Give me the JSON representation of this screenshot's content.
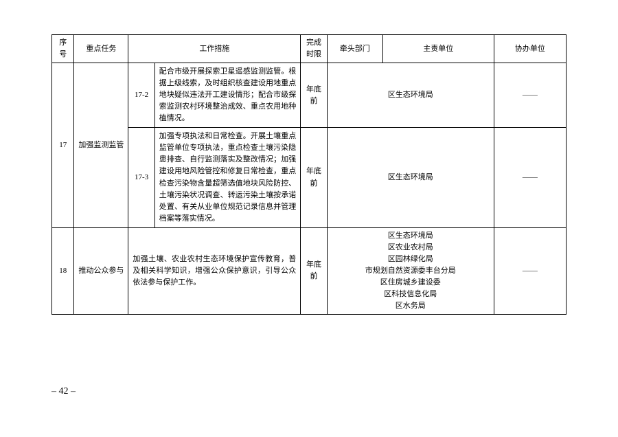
{
  "headers": {
    "seq": "序号",
    "task": "重点任务",
    "measure": "工作措施",
    "deadline": "完成\n时限",
    "lead": "牵头部门",
    "responsible": "主责单位",
    "assist": "协办单位"
  },
  "rows": [
    {
      "seq": "17",
      "task": "加强监测监管",
      "sub": [
        {
          "code": "17-2",
          "text": "配合市级开展探索卫星遥感监测监管。根据上级线索，及时组织核查建设用地重点地块疑似违法开工建设情形；配合市级探索监测农村环境整治成效、重点农用地种植情况。",
          "deadline": "年底前",
          "responsible": "区生态环境局",
          "assist": "——"
        },
        {
          "code": "17-3",
          "text": "加强专项执法和日常检查。开展土壤重点监管单位专项执法，重点检查土壤污染隐患排查、自行监测落实及整改情况；加强建设用地风险管控和修复日常检查，重点检查污染物含量超筛选值地块风险防控、土壤污染状况调查、转运污染土壤按承诺处置、有关从业单位规范记录信息并管理档案等落实情况。",
          "deadline": "年底前",
          "responsible": "区生态环境局",
          "assist": "——"
        }
      ]
    },
    {
      "seq": "18",
      "task": "推动公众参与",
      "measure_text": "加强土壤、农业农村生态环境保护宣传教育，普及相关科学知识，增强公众保护意识，引导公众依法参与保护工作。",
      "deadline": "年底前",
      "responsible": "区生态环境局\n区农业农村局\n区园林绿化局\n市规划自然资源委丰台分局\n区住房城乡建设委\n区科技信息化局\n区水务局",
      "assist": "——"
    }
  ],
  "page_number": "– 42 –"
}
